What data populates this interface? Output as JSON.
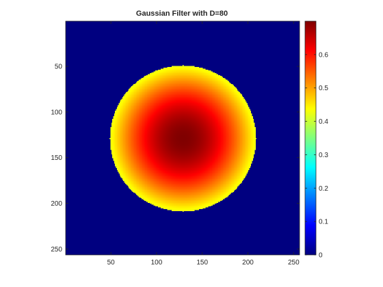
{
  "chart_data": {
    "type": "heatmap",
    "title": "Gaussian Filter with D=80",
    "xlabel": "",
    "ylabel": "",
    "image_size": [
      256,
      256
    ],
    "xlim": [
      0.5,
      256.5
    ],
    "ylim": [
      0.5,
      256.5
    ],
    "y_direction": "reverse",
    "x_ticks": [
      50,
      100,
      150,
      200,
      250
    ],
    "y_ticks": [
      50,
      100,
      150,
      200,
      250
    ],
    "center": [
      129,
      129
    ],
    "cutoff_radius": 80,
    "gaussian_sigma": 80,
    "peak_value": 0.7,
    "outside_value": 0,
    "colormap": "jet",
    "color_limits": [
      0,
      0.7
    ],
    "colorbar": {
      "location": "right",
      "ticks": [
        0,
        0.1,
        0.2,
        0.3,
        0.4,
        0.5,
        0.6
      ]
    },
    "grid": false
  }
}
